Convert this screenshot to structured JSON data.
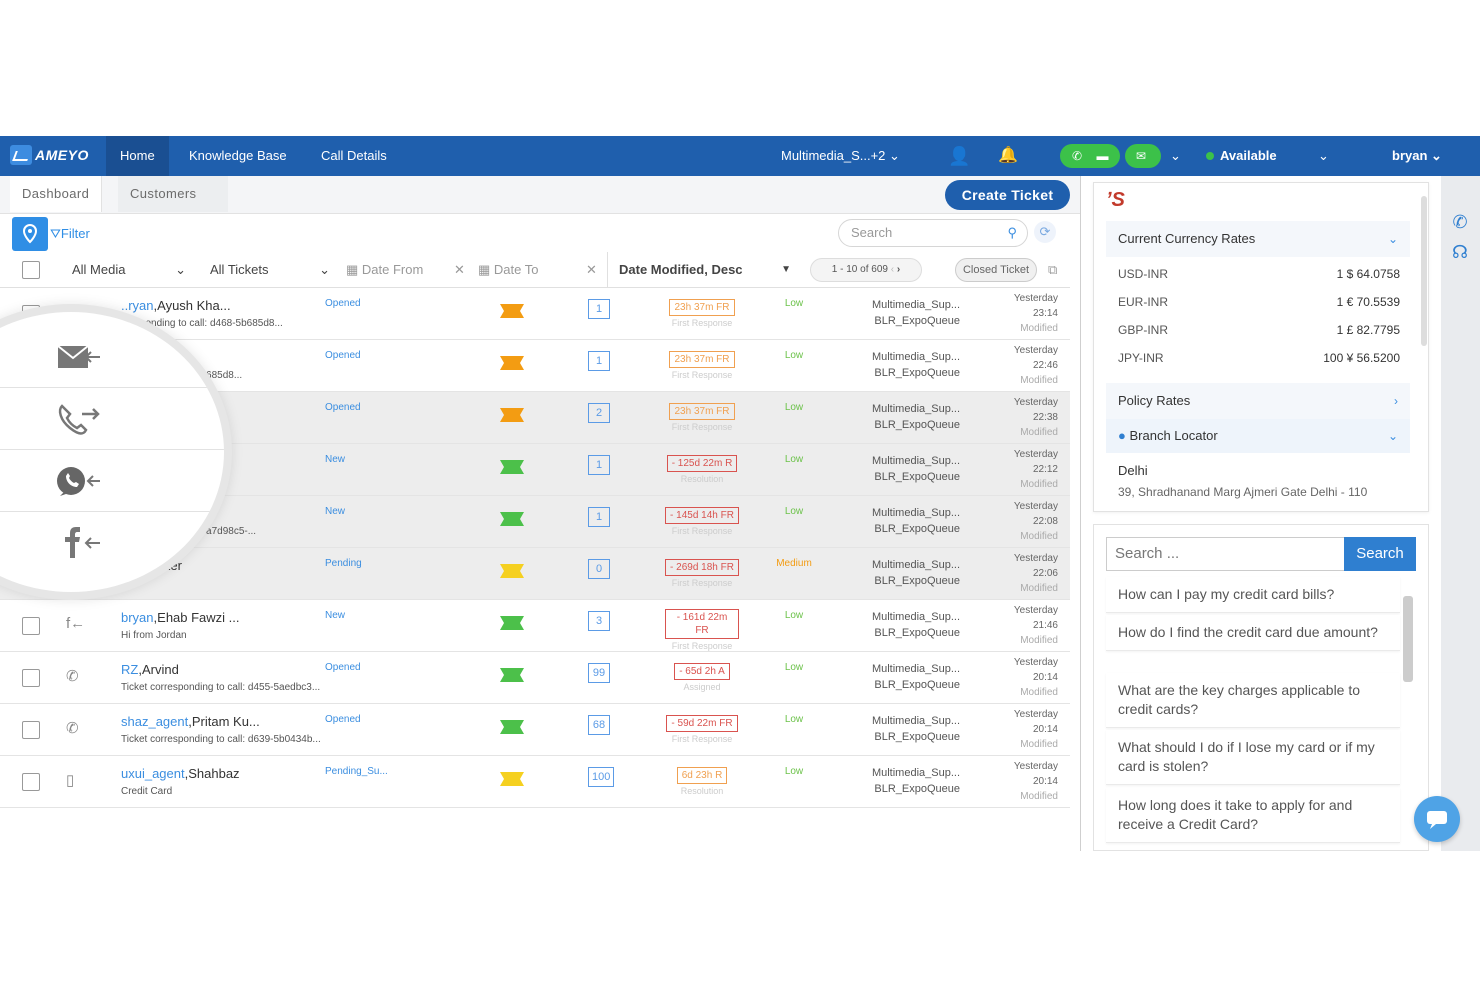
{
  "nav": {
    "logo": "AMEYO",
    "home": "Home",
    "kb": "Knowledge Base",
    "calls": "Call Details",
    "campaign": "Multimedia_S...+2",
    "status": "Available",
    "user": "bryan"
  },
  "tabs": {
    "dashboard": "Dashboard",
    "customers": "Customers",
    "create": "Create Ticket"
  },
  "filter": {
    "label": "Filter",
    "search_placeholder": "Search"
  },
  "header": {
    "media": "All Media",
    "tickets": "All Tickets",
    "date_from": "Date From",
    "date_to": "Date To",
    "sort": "Date Modified, Desc",
    "pager": "1 - 10 of 609",
    "closed": "Closed Ticket"
  },
  "rows": [
    {
      "agent": "..ryan",
      "name": ",Ayush Kha...",
      "sub": "...esponding to call: d468-5b685d8...",
      "status": "Opened",
      "count": "1",
      "sla": "23h 37m FR",
      "sla_label": "First Response",
      "sla_color": "#f0a050",
      "level": "Low",
      "level_color": "#6cc24a",
      "queue1": "Multimedia_Sup...",
      "queue2": "BLR_ExpoQueue",
      "t1": "Yesterday",
      "t2": "23:14",
      "t3": "Modified",
      "pri": "#f39c12",
      "shade": false
    },
    {
      "agent": "",
      "name": "...ha...",
      "sub": "...g to call: d468-5b685d8...",
      "status": "Opened",
      "count": "1",
      "sla": "23h 37m FR",
      "sla_label": "First Response",
      "sla_color": "#f0a050",
      "level": "Low",
      "level_color": "#6cc24a",
      "queue1": "Multimedia_Sup...",
      "queue2": "BLR_ExpoQueue",
      "t1": "Yesterday",
      "t2": "22:46",
      "t3": "Modified",
      "pri": "#f39c12",
      "shade": false
    },
    {
      "agent": "",
      "name": "...",
      "sub": "",
      "status": "Opened",
      "count": "2",
      "sla": "23h 37m FR",
      "sla_label": "First Response",
      "sla_color": "#f0a050",
      "level": "Low",
      "level_color": "#6cc24a",
      "queue1": "Multimedia_Sup...",
      "queue2": "BLR_ExpoQueue",
      "t1": "Yesterday",
      "t2": "22:38",
      "t3": "Modified",
      "pri": "#f39c12",
      "shade": true
    },
    {
      "agent": "",
      "name": "",
      "sub": "",
      "status": "New",
      "count": "1",
      "sla": "- 125d 22m R",
      "sla_label": "Resolution",
      "sla_color": "#d9534f",
      "level": "Low",
      "level_color": "#6cc24a",
      "queue1": "Multimedia_Sup...",
      "queue2": "BLR_ExpoQueue",
      "t1": "Yesterday",
      "t2": "22:12",
      "t3": "Modified",
      "pri": "#4cc04a",
      "shade": true
    },
    {
      "agent": "",
      "name": "",
      "sub": "...ng to call: d999-5a7d98c5-...",
      "status": "New",
      "count": "1",
      "sla": "- 145d 14h FR",
      "sla_label": "First Response",
      "sla_color": "#d9534f",
      "level": "Low",
      "level_color": "#6cc24a",
      "queue1": "Multimedia_Sup...",
      "queue2": "BLR_ExpoQueue",
      "t1": "Yesterday",
      "t2": "22:08",
      "t3": "Modified",
      "pri": "#4cc04a",
      "shade": true
    },
    {
      "agent": "",
      "name": "...s Walker",
      "sub": "...nt",
      "status": "Pending",
      "count": "0",
      "sla": "- 269d 18h FR",
      "sla_label": "First Response",
      "sla_color": "#d9534f",
      "level": "Medium",
      "level_color": "#f39c12",
      "queue1": "Multimedia_Sup...",
      "queue2": "BLR_ExpoQueue",
      "t1": "Yesterday",
      "t2": "22:06",
      "t3": "Modified",
      "pri": "#f5d020",
      "shade": true
    },
    {
      "agent": "bryan",
      "name": ",Ehab Fawzi ...",
      "sub": "Hi from Jordan",
      "status": "New",
      "count": "3",
      "sla": "- 161d 22m FR",
      "sla_label": "First Response",
      "sla_color": "#d9534f",
      "level": "Low",
      "level_color": "#6cc24a",
      "queue1": "Multimedia_Sup...",
      "queue2": "BLR_ExpoQueue",
      "t1": "Yesterday",
      "t2": "21:46",
      "t3": "Modified",
      "pri": "#4cc04a",
      "shade": false,
      "icon": "f←"
    },
    {
      "agent": "RZ",
      "name": ",Arvind",
      "sub": "Ticket corresponding to call: d455-5aedbc3...",
      "status": "Opened",
      "count": "99",
      "sla": "- 65d 2h A",
      "sla_label": "Assigned",
      "sla_color": "#d9534f",
      "level": "Low",
      "level_color": "#6cc24a",
      "queue1": "Multimedia_Sup...",
      "queue2": "BLR_ExpoQueue",
      "t1": "Yesterday",
      "t2": "20:14",
      "t3": "Modified",
      "pri": "#4cc04a",
      "shade": false,
      "icon": "✆"
    },
    {
      "agent": "shaz_agent",
      "name": ",Pritam Ku...",
      "sub": "Ticket corresponding to call: d639-5b0434b...",
      "status": "Opened",
      "count": "68",
      "sla": "- 59d 22m FR",
      "sla_label": "First Response",
      "sla_color": "#d9534f",
      "level": "Low",
      "level_color": "#6cc24a",
      "queue1": "Multimedia_Sup...",
      "queue2": "BLR_ExpoQueue",
      "t1": "Yesterday",
      "t2": "20:14",
      "t3": "Modified",
      "pri": "#4cc04a",
      "shade": false,
      "icon": "✆"
    },
    {
      "agent": "uxui_agent",
      "name": ",Shahbaz",
      "sub": "Credit Card",
      "status": "Pending_Su...",
      "count": "100",
      "sla": "6d 23h R",
      "sla_label": "Resolution",
      "sla_color": "#f0a050",
      "level": "Low",
      "level_color": "#6cc24a",
      "queue1": "Multimedia_Sup...",
      "queue2": "BLR_ExpoQueue",
      "t1": "Yesterday",
      "t2": "20:14",
      "t3": "Modified",
      "pri": "#f5d020",
      "shade": false,
      "icon": "▯"
    }
  ],
  "rates": {
    "title": "Current Currency Rates",
    "items": [
      {
        "pair": "USD-INR",
        "value": "1 $ 64.0758"
      },
      {
        "pair": "EUR-INR",
        "value": "1 € 70.5539"
      },
      {
        "pair": "GBP-INR",
        "value": "1 £ 82.7795"
      },
      {
        "pair": "JPY-INR",
        "value": "100 ¥ 56.5200"
      }
    ],
    "policy": "Policy Rates",
    "branch": "Branch Locator",
    "city": "Delhi",
    "address": "39, Shradhanand Marg Ajmeri Gate Delhi - 110"
  },
  "faq": {
    "placeholder": "Search ...",
    "button": "Search",
    "items": [
      "How can I pay my credit card bills?",
      "How do I find the credit card due amount?",
      "What are the key charges applicable to credit cards?",
      "What should I do if I lose my card or if my card is stolen?",
      "How long does it take to apply for and receive a Credit Card?"
    ]
  }
}
